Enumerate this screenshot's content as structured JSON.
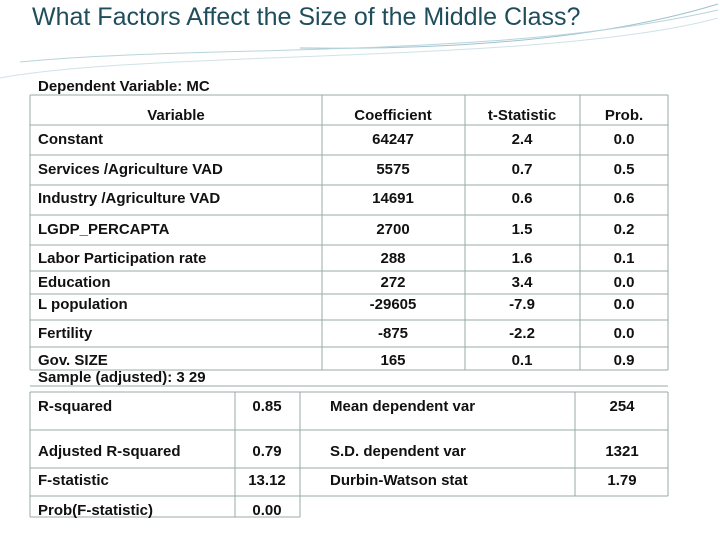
{
  "header": {
    "title": "What Factors Affect the Size of the Middle Class?"
  },
  "table": {
    "caption": "Dependent Variable: MC",
    "columns": [
      "Variable",
      "Coefficient",
      "t-Statistic",
      "Prob."
    ],
    "rows": [
      [
        "Constant",
        "64247",
        "2.4",
        "0.0"
      ],
      [
        "Services /Agriculture VAD",
        "5575",
        "0.7",
        "0.5"
      ],
      [
        "Industry /Agriculture VAD",
        "14691",
        "0.6",
        "0.6"
      ],
      [
        "LGDP_PERCAPTA",
        "2700",
        "1.5",
        "0.2"
      ],
      [
        "Labor Participation rate",
        "288",
        "1.6",
        "0.1"
      ],
      [
        "Education",
        "272",
        "3.4",
        "0.0"
      ],
      [
        "L population",
        "-29605",
        "-7.9",
        "0.0"
      ],
      [
        "Fertility",
        "-875",
        "-2.2",
        "0.0"
      ],
      [
        "Gov. SIZE",
        "165",
        "0.1",
        "0.9"
      ]
    ]
  },
  "stats": {
    "sample": "Sample (adjusted): 3 29",
    "rows": [
      [
        "R-squared",
        "0.85",
        "Mean dependent var",
        "254"
      ],
      [
        "Adjusted R-squared",
        "0.79",
        "S.D. dependent var",
        "1321"
      ],
      [
        "F-statistic",
        "13.12",
        "Durbin-Watson stat",
        "1.79"
      ],
      [
        "Prob(F-statistic)",
        "0.00"
      ]
    ]
  }
}
